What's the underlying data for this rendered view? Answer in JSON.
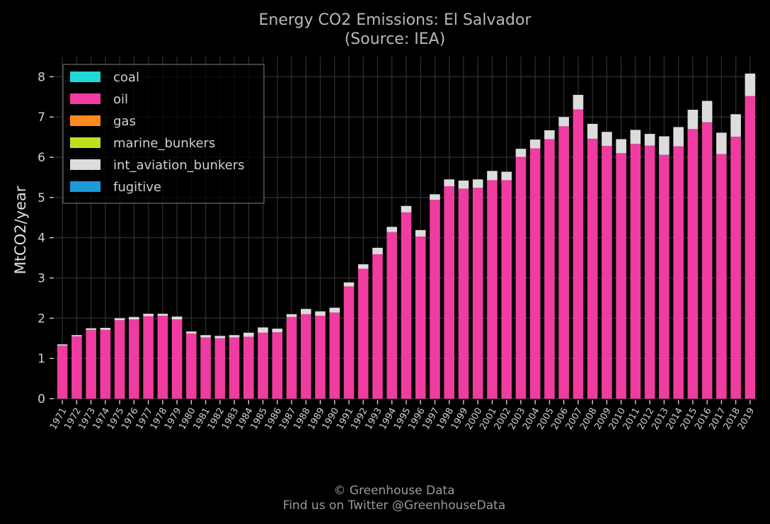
{
  "chart_data": {
    "type": "bar",
    "stacked": true,
    "title": "Energy CO2 Emissions: El Salvador",
    "subtitle": "(Source: IEA)",
    "xlabel": "",
    "ylabel": "MtCO2/year",
    "ylim": [
      0,
      8.5
    ],
    "yticks": [
      0,
      1,
      2,
      3,
      4,
      5,
      6,
      7,
      8
    ],
    "grid": true,
    "legend_position": "top-left",
    "categories": [
      "1971",
      "1972",
      "1973",
      "1974",
      "1975",
      "1976",
      "1977",
      "1978",
      "1979",
      "1980",
      "1981",
      "1982",
      "1983",
      "1984",
      "1985",
      "1986",
      "1987",
      "1988",
      "1989",
      "1990",
      "1991",
      "1992",
      "1993",
      "1994",
      "1995",
      "1996",
      "1997",
      "1998",
      "1999",
      "2000",
      "2001",
      "2002",
      "2003",
      "2004",
      "2005",
      "2006",
      "2007",
      "2008",
      "2009",
      "2010",
      "2011",
      "2012",
      "2013",
      "2014",
      "2015",
      "2016",
      "2017",
      "2018",
      "2019"
    ],
    "series": [
      {
        "name": "coal",
        "color": "#1ed8d8",
        "values": [
          0,
          0,
          0,
          0,
          0,
          0,
          0,
          0,
          0,
          0,
          0,
          0,
          0,
          0,
          0,
          0,
          0,
          0,
          0,
          0,
          0,
          0,
          0,
          0,
          0,
          0,
          0,
          0,
          0,
          0,
          0,
          0,
          0,
          0,
          0,
          0,
          0,
          0,
          0,
          0,
          0,
          0,
          0,
          0,
          0,
          0,
          0,
          0,
          0
        ]
      },
      {
        "name": "oil",
        "color": "#f03ca0",
        "values": [
          1.32,
          1.55,
          1.71,
          1.71,
          1.95,
          1.97,
          2.05,
          2.06,
          1.97,
          1.62,
          1.52,
          1.5,
          1.52,
          1.54,
          1.64,
          1.65,
          2.03,
          2.1,
          2.06,
          2.14,
          2.79,
          3.23,
          3.59,
          4.14,
          4.63,
          4.03,
          4.94,
          5.28,
          5.22,
          5.24,
          5.43,
          5.43,
          6.01,
          6.22,
          6.45,
          6.77,
          7.19,
          6.46,
          6.28,
          6.1,
          6.33,
          6.29,
          6.06,
          6.27,
          6.7,
          6.87,
          6.08,
          6.51,
          7.52
        ]
      },
      {
        "name": "gas",
        "color": "#ff8a1e",
        "values": [
          0,
          0,
          0,
          0,
          0,
          0,
          0,
          0,
          0,
          0,
          0,
          0,
          0,
          0,
          0,
          0,
          0,
          0,
          0,
          0,
          0,
          0,
          0,
          0,
          0,
          0,
          0,
          0,
          0,
          0,
          0,
          0,
          0,
          0,
          0,
          0,
          0,
          0,
          0,
          0,
          0,
          0,
          0,
          0,
          0,
          0,
          0,
          0,
          0
        ]
      },
      {
        "name": "marine_bunkers",
        "color": "#c0e01e",
        "values": [
          0,
          0,
          0,
          0,
          0,
          0,
          0,
          0,
          0,
          0,
          0,
          0,
          0,
          0,
          0,
          0,
          0,
          0,
          0,
          0,
          0,
          0,
          0,
          0,
          0,
          0,
          0,
          0,
          0,
          0,
          0,
          0,
          0,
          0,
          0,
          0,
          0,
          0,
          0,
          0,
          0,
          0,
          0,
          0,
          0,
          0,
          0,
          0,
          0
        ]
      },
      {
        "name": "int_aviation_bunkers",
        "color": "#dcdcdc",
        "values": [
          0.03,
          0.03,
          0.04,
          0.05,
          0.05,
          0.06,
          0.06,
          0.05,
          0.07,
          0.05,
          0.06,
          0.06,
          0.06,
          0.1,
          0.13,
          0.09,
          0.07,
          0.13,
          0.11,
          0.12,
          0.1,
          0.11,
          0.16,
          0.13,
          0.16,
          0.16,
          0.14,
          0.17,
          0.2,
          0.21,
          0.23,
          0.21,
          0.2,
          0.22,
          0.22,
          0.23,
          0.36,
          0.37,
          0.35,
          0.35,
          0.35,
          0.29,
          0.46,
          0.48,
          0.48,
          0.53,
          0.53,
          0.56,
          0.56
        ]
      },
      {
        "name": "fugitive",
        "color": "#1e9ad8",
        "values": [
          0,
          0,
          0,
          0,
          0,
          0,
          0,
          0,
          0,
          0,
          0,
          0,
          0,
          0,
          0,
          0,
          0,
          0,
          0,
          0,
          0,
          0,
          0,
          0,
          0,
          0,
          0,
          0,
          0,
          0,
          0,
          0,
          0,
          0,
          0,
          0,
          0,
          0,
          0,
          0,
          0,
          0,
          0,
          0,
          0,
          0,
          0,
          0,
          0
        ]
      }
    ]
  },
  "credits": {
    "line1": "© Greenhouse Data",
    "line2": "Find us on Twitter @GreenhouseData"
  }
}
